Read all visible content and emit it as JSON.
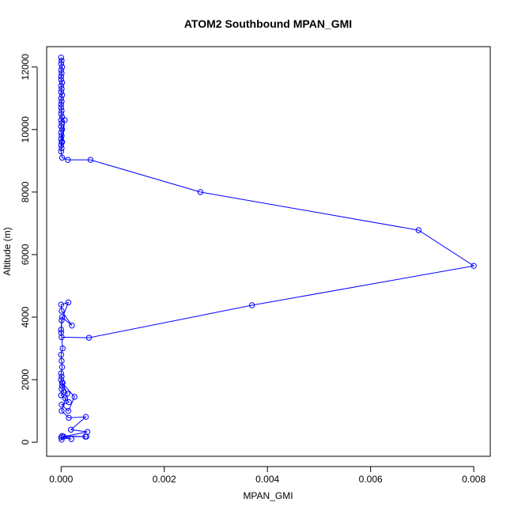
{
  "chart_data": {
    "type": "line",
    "title": "ATOM2 Southbound MPAN_GMI",
    "xlabel": "MPAN_GMI",
    "ylabel": "Altitude (m)",
    "xlim": [
      -0.00028,
      0.00832
    ],
    "ylim": [
      -450,
      12650
    ],
    "x_ticks": [
      0,
      0.002,
      0.004,
      0.006,
      0.008
    ],
    "x_tick_labels": [
      "0.000",
      "0.002",
      "0.004",
      "0.006",
      "0.008"
    ],
    "y_ticks": [
      0,
      2000,
      4000,
      6000,
      8000,
      10000,
      12000
    ],
    "y_tick_labels": [
      "0",
      "2000",
      "4000",
      "6000",
      "8000",
      "10000",
      "12000"
    ],
    "grid": false,
    "legend": "none",
    "colors": {
      "series": "#0000ff",
      "axis": "#000000",
      "background": "#ffffff"
    },
    "series": [
      {
        "marker": "open-circle",
        "x": [
          0,
          1e-05,
          0,
          2e-05,
          0,
          1e-05,
          0,
          0,
          2e-05,
          0,
          1e-05,
          0,
          2e-05,
          0,
          1e-05,
          0,
          0,
          1e-05,
          0,
          2e-05,
          0,
          1e-05,
          0,
          2e-05,
          0,
          1e-05,
          0,
          2e-05,
          0,
          1e-05,
          7e-05,
          1e-05,
          0,
          2e-05,
          0.00013,
          0.00057,
          0.0027,
          0.00693,
          0.008,
          0.0037,
          0.00054,
          1e-05,
          0,
          2e-05,
          0.00021,
          1e-05,
          0,
          0.00014,
          1e-05,
          0,
          3e-05,
          0,
          1e-05,
          2e-05,
          0,
          1e-05,
          0,
          3e-05,
          2e-05,
          1e-05,
          5e-05,
          0,
          8e-05,
          0.00015,
          1e-05,
          0.00014,
          0.00026,
          2e-05,
          0.00012,
          1e-05,
          0.00015,
          0.00048,
          0.00019,
          0.00051,
          5e-05,
          0.00049,
          0.00047,
          2e-05,
          0.0002,
          0,
          1e-05
        ],
        "y": [
          12300,
          12200,
          12100,
          12000,
          11900,
          11800,
          11700,
          11600,
          11500,
          11400,
          11300,
          11200,
          11100,
          11000,
          10900,
          10800,
          10700,
          10600,
          10500,
          10400,
          10300,
          10200,
          10100,
          10000,
          9900,
          9800,
          9700,
          9600,
          9500,
          9400,
          10300,
          9600,
          9300,
          9100,
          9030,
          9030,
          8000,
          6780,
          5640,
          4380,
          3340,
          3360,
          3500,
          4000,
          3730,
          4200,
          4400,
          4470,
          3900,
          3600,
          3000,
          2800,
          2600,
          2400,
          2200,
          2100,
          2000,
          1900,
          1800,
          1700,
          1600,
          1500,
          1400,
          1280,
          1200,
          1000,
          1450,
          1900,
          1550,
          1000,
          780,
          810,
          400,
          330,
          180,
          180,
          180,
          200,
          100,
          150,
          80
        ]
      }
    ]
  }
}
